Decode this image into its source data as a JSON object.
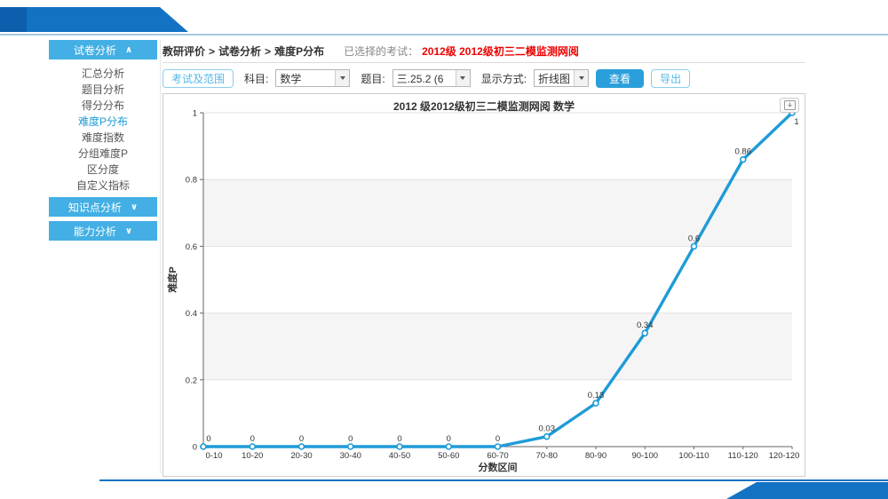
{
  "colors": {
    "banner_blue": "#1472C4",
    "banner_dark_blue": "#0D5FAD",
    "sidebar_header_blue": "#43AFE4",
    "accent_blue": "#1E9BD7",
    "exam_red": "#EE0000"
  },
  "sidebar": {
    "sections": [
      {
        "label": "试卷分析",
        "expanded": true,
        "items": [
          {
            "label": "汇总分析",
            "active": false
          },
          {
            "label": "题目分析",
            "active": false
          },
          {
            "label": "得分分布",
            "active": false
          },
          {
            "label": "难度P分布",
            "active": true
          },
          {
            "label": "难度指数",
            "active": false
          },
          {
            "label": "分组难度P",
            "active": false
          },
          {
            "label": "区分度",
            "active": false
          },
          {
            "label": "自定义指标",
            "active": false
          }
        ]
      },
      {
        "label": "知识点分析",
        "expanded": false,
        "items": []
      },
      {
        "label": "能力分析",
        "expanded": false,
        "items": []
      }
    ],
    "chevron_up": "∧",
    "chevron_down": "∨"
  },
  "breadcrumb": {
    "crumbs": [
      "教研评价",
      "试卷分析",
      "难度P分布"
    ],
    "separator": ">",
    "selected_exam_label": "已选择的考试：",
    "selected_exam": "2012级 2012级初三二模监测网阅"
  },
  "toolbar": {
    "exam_range_button": "考试及范围",
    "subject_label": "科目:",
    "subject_value": "数学",
    "question_label": "题目:",
    "question_value": "三.25.2 (6",
    "display_label": "显示方式:",
    "display_value": "折线图",
    "view_button": "查看",
    "export_button": "导出"
  },
  "chart_data": {
    "type": "line",
    "title": "2012 级2012级初三二模监测网阅  数学",
    "categories": [
      "0-10",
      "10-20",
      "20-30",
      "30-40",
      "40-50",
      "50-60",
      "60-70",
      "70-80",
      "80-90",
      "90-100",
      "100-110",
      "110-120",
      "120-120"
    ],
    "values": [
      0,
      0,
      0,
      0,
      0,
      0,
      0,
      0.03,
      0.13,
      0.34,
      0.6,
      0.86,
      1
    ],
    "point_labels": [
      "0",
      "0",
      "0",
      "0",
      "0",
      "0",
      "0",
      "0.03",
      "0.13",
      "0.34",
      "0.6",
      "0.86",
      "1"
    ],
    "xlabel": "分数区间",
    "ylabel": "难度P",
    "ylim": [
      0,
      1
    ],
    "yticks": [
      0,
      0.2,
      0.4,
      0.6,
      0.8,
      1
    ],
    "line_color": "#1E9BD7",
    "grid": true,
    "split_area": true,
    "legend": "none"
  }
}
